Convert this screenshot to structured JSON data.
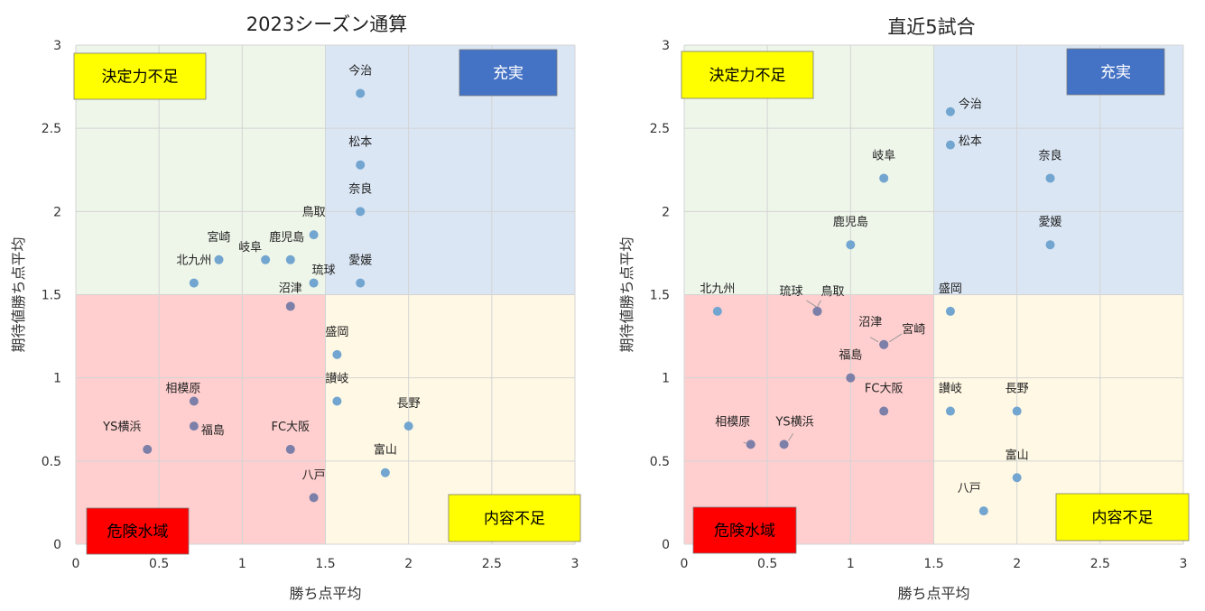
{
  "colors": {
    "quadrant_top_left": "#eef5e9",
    "quadrant_top_right": "#dae6f4",
    "quadrant_bottom_left": "#ffcfcf",
    "quadrant_bottom_right": "#fff8e4",
    "point": "#72a5d0",
    "point_dark": "#7c7fa8",
    "yellow_box": "#ffff00",
    "blue_box": "#4472c4",
    "red_box": "#ff0000"
  },
  "chart_data": [
    {
      "type": "scatter",
      "title": "2023シーズン通算",
      "xlabel": "勝ち点平均",
      "ylabel": "期待値勝ち点平均",
      "xlim": [
        0,
        3
      ],
      "ylim": [
        0,
        3
      ],
      "x_ticks": [
        "0",
        "0.5",
        "1",
        "1.5",
        "2",
        "2.5",
        "3"
      ],
      "y_ticks": [
        "0",
        "0.5",
        "1",
        "1.5",
        "2",
        "2.5",
        "3"
      ],
      "grid": true,
      "quadrant_split": [
        1.5,
        1.5
      ],
      "quadrant_labels": {
        "top_left": "決定力不足",
        "top_right": "充実",
        "bottom_left": "危険水域",
        "bottom_right": "内容不足"
      },
      "points": [
        {
          "label": "今治",
          "x": 1.71,
          "y": 2.71
        },
        {
          "label": "松本",
          "x": 1.71,
          "y": 2.28
        },
        {
          "label": "奈良",
          "x": 1.71,
          "y": 2.0
        },
        {
          "label": "鳥取",
          "x": 1.43,
          "y": 1.86
        },
        {
          "label": "宮崎",
          "x": 0.86,
          "y": 1.71
        },
        {
          "label": "岐阜",
          "x": 1.14,
          "y": 1.71
        },
        {
          "label": "鹿児島",
          "x": 1.29,
          "y": 1.71
        },
        {
          "label": "北九州",
          "x": 0.71,
          "y": 1.57
        },
        {
          "label": "琉球",
          "x": 1.43,
          "y": 1.57
        },
        {
          "label": "愛媛",
          "x": 1.71,
          "y": 1.57
        },
        {
          "label": "沼津",
          "x": 1.29,
          "y": 1.43
        },
        {
          "label": "盛岡",
          "x": 1.57,
          "y": 1.14
        },
        {
          "label": "相模原",
          "x": 0.71,
          "y": 0.86
        },
        {
          "label": "讃岐",
          "x": 1.57,
          "y": 0.86
        },
        {
          "label": "福島",
          "x": 0.71,
          "y": 0.71
        },
        {
          "label": "長野",
          "x": 2.0,
          "y": 0.71
        },
        {
          "label": "YS横浜",
          "x": 0.43,
          "y": 0.57
        },
        {
          "label": "FC大阪",
          "x": 1.29,
          "y": 0.57
        },
        {
          "label": "富山",
          "x": 1.86,
          "y": 0.43
        },
        {
          "label": "八戸",
          "x": 1.43,
          "y": 0.28
        }
      ]
    },
    {
      "type": "scatter",
      "title": "直近5試合",
      "xlabel": "勝ち点平均",
      "ylabel": "期待値勝ち点平均",
      "xlim": [
        0,
        3
      ],
      "ylim": [
        0,
        3
      ],
      "x_ticks": [
        "0",
        "0.5",
        "1",
        "1.5",
        "2",
        "2.5",
        "3"
      ],
      "y_ticks": [
        "0",
        "0.5",
        "1",
        "1.5",
        "2",
        "2.5",
        "3"
      ],
      "grid": true,
      "quadrant_split": [
        1.5,
        1.5
      ],
      "quadrant_labels": {
        "top_left": "決定力不足",
        "top_right": "充実",
        "bottom_left": "危険水域",
        "bottom_right": "内容不足"
      },
      "points": [
        {
          "label": "今治",
          "x": 1.6,
          "y": 2.6
        },
        {
          "label": "松本",
          "x": 1.6,
          "y": 2.4
        },
        {
          "label": "岐阜",
          "x": 1.2,
          "y": 2.2
        },
        {
          "label": "奈良",
          "x": 2.2,
          "y": 2.2
        },
        {
          "label": "鹿児島",
          "x": 1.0,
          "y": 1.8
        },
        {
          "label": "愛媛",
          "x": 2.2,
          "y": 1.8
        },
        {
          "label": "北九州",
          "x": 0.2,
          "y": 1.4
        },
        {
          "label": "琉球",
          "x": 0.8,
          "y": 1.4
        },
        {
          "label": "鳥取",
          "x": 0.8,
          "y": 1.4
        },
        {
          "label": "盛岡",
          "x": 1.6,
          "y": 1.4
        },
        {
          "label": "沼津",
          "x": 1.2,
          "y": 1.2
        },
        {
          "label": "宮崎",
          "x": 1.2,
          "y": 1.2
        },
        {
          "label": "福島",
          "x": 1.0,
          "y": 1.0
        },
        {
          "label": "FC大阪",
          "x": 1.2,
          "y": 0.8
        },
        {
          "label": "讃岐",
          "x": 1.6,
          "y": 0.8
        },
        {
          "label": "長野",
          "x": 2.0,
          "y": 0.8
        },
        {
          "label": "相模原",
          "x": 0.4,
          "y": 0.6
        },
        {
          "label": "YS横浜",
          "x": 0.6,
          "y": 0.6
        },
        {
          "label": "富山",
          "x": 2.0,
          "y": 0.4
        },
        {
          "label": "八戸",
          "x": 1.8,
          "y": 0.2
        }
      ]
    }
  ]
}
